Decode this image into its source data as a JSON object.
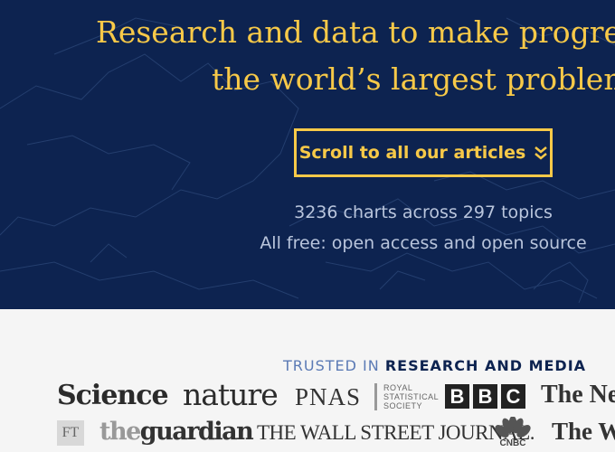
{
  "hero": {
    "headline_line1": "Research and data to make progres",
    "headline_line2": "the world’s largest problem",
    "scroll_button_label": "Scroll to all our articles",
    "scroll_button_icon": "double-chevron-down-icon",
    "stats_line1": "3236 charts across 297 topics",
    "stats_line2": "All free: open access and open source",
    "colors": {
      "background": "#0d2350",
      "accent": "#f7c948",
      "muted": "#b9c5dc"
    }
  },
  "trusted": {
    "heading_prefix": "TRUSTED IN",
    "heading_suffix": "RESEARCH AND MEDIA",
    "logos_row1": {
      "science": "Science",
      "nature": "nature",
      "pnas": "PNAS",
      "rss_line1": "ROYAL",
      "rss_line2": "STATISTICAL",
      "rss_line3": "SOCIETY",
      "bbc_b1": "B",
      "bbc_b2": "B",
      "bbc_c": "C",
      "nyt": "The New"
    },
    "logos_row2": {
      "ft": "FT",
      "guardian_the": "the",
      "guardian_name": "guardian",
      "wsj": "THE WALL STREET JOURNAL.",
      "cnbc": "CNBC",
      "wapo": "The Wa"
    }
  }
}
